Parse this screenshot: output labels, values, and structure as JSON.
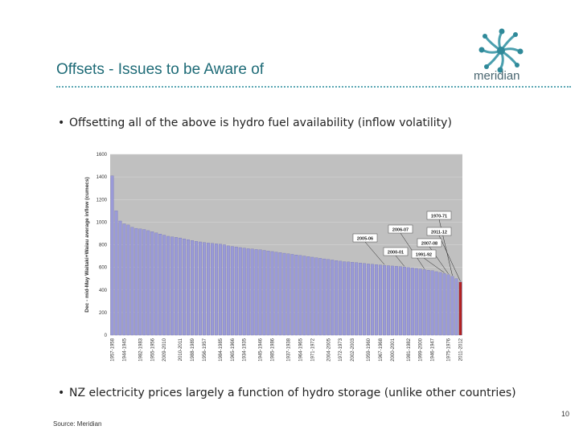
{
  "slide": {
    "title": "Offsets - Issues to be Aware of",
    "logo_text": "meridian",
    "bullet_1": "Offsetting all of the above is hydro fuel availability (inflow volatility)",
    "bullet_2": "NZ electricity prices largely a function of hydro storage (unlike other countries)",
    "page_number": "10",
    "source": "Source: Meridian"
  },
  "colors": {
    "title": "#1e6b77",
    "bar": "#9a9ad8",
    "bar_highlight": "#b22222",
    "plot_bg": "#c0c0c0"
  },
  "chart_data": {
    "type": "bar",
    "ylabel": "Dec - mid-May Waitaki+Waiau average inflow (cumecs)",
    "xlabel": "",
    "ylim": [
      0,
      1600
    ],
    "yticks": [
      0,
      200,
      400,
      600,
      800,
      1000,
      1200,
      1400,
      1600
    ],
    "grid": true,
    "values": [
      1410,
      1100,
      1010,
      985,
      975,
      955,
      945,
      940,
      935,
      925,
      915,
      905,
      895,
      885,
      875,
      870,
      865,
      860,
      852,
      845,
      838,
      830,
      825,
      820,
      815,
      812,
      808,
      805,
      800,
      790,
      785,
      780,
      775,
      770,
      765,
      762,
      758,
      755,
      750,
      745,
      740,
      735,
      730,
      725,
      720,
      715,
      710,
      705,
      700,
      695,
      690,
      685,
      680,
      675,
      670,
      665,
      660,
      655,
      650,
      648,
      645,
      642,
      638,
      634,
      630,
      627,
      624,
      621,
      618,
      615,
      612,
      609,
      606,
      602,
      598,
      594,
      590,
      585,
      580,
      575,
      570,
      562,
      555,
      545,
      535,
      520,
      500,
      470
    ],
    "highlight_index": 87,
    "x_tick_labels": [
      "1957-1958",
      "1944-1945",
      "1982-1983",
      "1955-1956",
      "2009-2010",
      "2010-2011",
      "1988-1989",
      "1956-1957",
      "1984-1985",
      "1965-1966",
      "1934-1935",
      "1945-1946",
      "1985-1986",
      "1937-1938",
      "1964-1965",
      "1971-1972",
      "2004-2005",
      "1972-1973",
      "2002-2003",
      "1959-1960",
      "1967-1968",
      "2000-2001",
      "1981-1982",
      "1999-2000",
      "1946-1947",
      "1975-1976",
      "2011-2012"
    ],
    "annotations": [
      {
        "label": "1970-71",
        "index": 85
      },
      {
        "label": "2006-07",
        "index": 78
      },
      {
        "label": "2011-12",
        "index": 87
      },
      {
        "label": "2005-06",
        "index": 68
      },
      {
        "label": "2007-08",
        "index": 84
      },
      {
        "label": "2000-01",
        "index": 73
      },
      {
        "label": "1991-92",
        "index": 83
      }
    ]
  }
}
